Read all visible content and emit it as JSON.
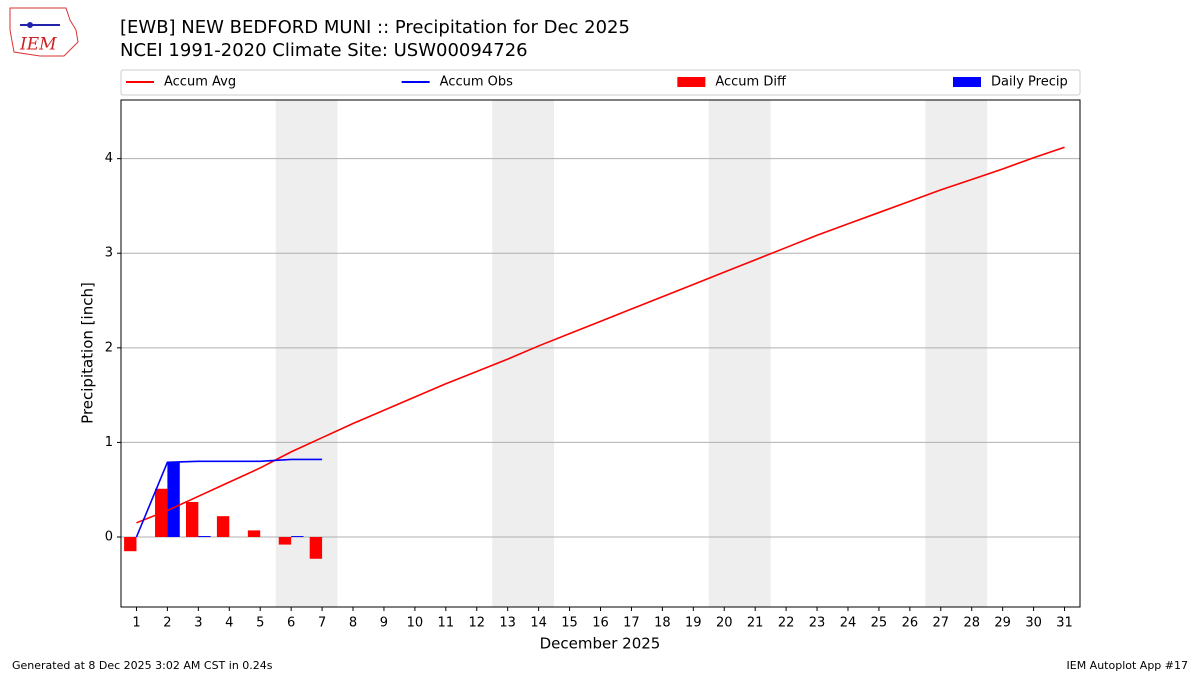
{
  "chart_data": {
    "type": "combo",
    "title": "[EWB] NEW BEDFORD MUNI :: Precipitation for Dec 2025",
    "subtitle": "NCEI 1991-2020 Climate Site: USW00094726",
    "xlabel": "December 2025",
    "ylabel": "Precipitation [inch]",
    "x": [
      1,
      2,
      3,
      4,
      5,
      6,
      7,
      8,
      9,
      10,
      11,
      12,
      13,
      14,
      15,
      16,
      17,
      18,
      19,
      20,
      21,
      22,
      23,
      24,
      25,
      26,
      27,
      28,
      29,
      30,
      31
    ],
    "series": [
      {
        "name": "Accum Avg",
        "type": "line",
        "color": "#ff0000",
        "values": [
          0.15,
          0.28,
          0.43,
          0.58,
          0.73,
          0.9,
          1.05,
          1.2,
          1.34,
          1.48,
          1.62,
          1.75,
          1.88,
          2.02,
          2.15,
          2.28,
          2.41,
          2.54,
          2.67,
          2.8,
          2.93,
          3.06,
          3.19,
          3.31,
          3.43,
          3.55,
          3.67,
          3.78,
          3.89,
          4.01,
          4.12
        ]
      },
      {
        "name": "Accum Obs",
        "type": "line",
        "color": "#0000ff",
        "values": [
          0,
          0.79,
          0.8,
          0.8,
          0.8,
          0.82,
          0.82,
          null,
          null,
          null,
          null,
          null,
          null,
          null,
          null,
          null,
          null,
          null,
          null,
          null,
          null,
          null,
          null,
          null,
          null,
          null,
          null,
          null,
          null,
          null,
          null
        ]
      },
      {
        "name": "Accum Diff",
        "type": "bar",
        "color": "#ff0000",
        "values": [
          -0.15,
          0.51,
          0.37,
          0.22,
          0.07,
          -0.08,
          -0.23,
          null,
          null,
          null,
          null,
          null,
          null,
          null,
          null,
          null,
          null,
          null,
          null,
          null,
          null,
          null,
          null,
          null,
          null,
          null,
          null,
          null,
          null,
          null,
          null
        ]
      },
      {
        "name": "Daily Precip",
        "type": "bar",
        "color": "#0000ff",
        "values": [
          0,
          0.79,
          0.01,
          0,
          0,
          0.01,
          0,
          null,
          null,
          null,
          null,
          null,
          null,
          null,
          null,
          null,
          null,
          null,
          null,
          null,
          null,
          null,
          null,
          null,
          null,
          null,
          null,
          null,
          null,
          null,
          null
        ]
      }
    ],
    "xlim": [
      0.5,
      31.5
    ],
    "ylim": [
      -0.74,
      4.62
    ],
    "xticks": [
      1,
      2,
      3,
      4,
      5,
      6,
      7,
      8,
      9,
      10,
      11,
      12,
      13,
      14,
      15,
      16,
      17,
      18,
      19,
      20,
      21,
      22,
      23,
      24,
      25,
      26,
      27,
      28,
      29,
      30,
      31
    ],
    "yticks": [
      0,
      1,
      2,
      3,
      4
    ],
    "grid": true,
    "shaded_spans": [
      [
        5.5,
        7.5
      ],
      [
        12.5,
        14.5
      ],
      [
        19.5,
        21.5
      ],
      [
        26.5,
        28.5
      ]
    ],
    "legend": "top"
  },
  "logo_text": "IEM",
  "footer_left": "Generated at 8 Dec 2025 3:02 AM CST in 0.24s",
  "footer_right": "IEM Autoplot App #17"
}
